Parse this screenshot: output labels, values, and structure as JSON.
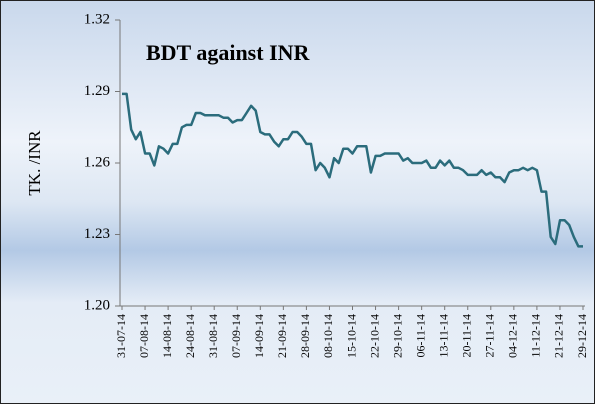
{
  "chart_data": {
    "type": "line",
    "title": "BDT against INR",
    "y_label": "TK. /INR",
    "categories": [
      "31-07-14",
      null,
      null,
      null,
      null,
      "07-08-14",
      null,
      null,
      null,
      null,
      "14-08-14",
      null,
      null,
      null,
      null,
      "24-08-14",
      null,
      null,
      null,
      null,
      "31-08-14",
      null,
      null,
      null,
      null,
      "07-09-14",
      null,
      null,
      null,
      null,
      "14-09-14",
      null,
      null,
      null,
      null,
      "21-09-14",
      null,
      null,
      null,
      null,
      "28-09-14",
      null,
      null,
      null,
      null,
      "08-10-14",
      null,
      null,
      null,
      null,
      "15-10-14",
      null,
      null,
      null,
      null,
      "22-10-14",
      null,
      null,
      null,
      null,
      "29-10-14",
      null,
      null,
      null,
      null,
      "06-11-14",
      null,
      null,
      null,
      null,
      "13-11-14",
      null,
      null,
      null,
      null,
      "20-11-14",
      null,
      null,
      null,
      null,
      "27-11-14",
      null,
      null,
      null,
      null,
      "04-12-14",
      null,
      null,
      null,
      null,
      "11-12-14",
      null,
      null,
      null,
      null,
      "21-12-14",
      null,
      null,
      null,
      null,
      "29-12-14"
    ],
    "series": [
      {
        "name": "BDT against INR",
        "color": "#2b6c7c",
        "values": [
          1.289,
          1.289,
          1.274,
          1.27,
          1.273,
          1.264,
          1.264,
          1.259,
          1.267,
          1.266,
          1.264,
          1.268,
          1.268,
          1.275,
          1.276,
          1.276,
          1.281,
          1.281,
          1.28,
          1.28,
          1.28,
          1.28,
          1.279,
          1.279,
          1.277,
          1.278,
          1.278,
          1.281,
          1.284,
          1.282,
          1.273,
          1.272,
          1.272,
          1.269,
          1.267,
          1.27,
          1.27,
          1.273,
          1.273,
          1.271,
          1.268,
          1.268,
          1.257,
          1.26,
          1.258,
          1.254,
          1.262,
          1.26,
          1.266,
          1.266,
          1.264,
          1.267,
          1.267,
          1.267,
          1.256,
          1.263,
          1.263,
          1.264,
          1.264,
          1.264,
          1.264,
          1.261,
          1.262,
          1.26,
          1.26,
          1.26,
          1.261,
          1.258,
          1.258,
          1.261,
          1.259,
          1.261,
          1.258,
          1.258,
          1.257,
          1.255,
          1.255,
          1.255,
          1.257,
          1.255,
          1.256,
          1.254,
          1.254,
          1.252,
          1.256,
          1.257,
          1.257,
          1.258,
          1.257,
          1.258,
          1.257,
          1.248,
          1.248,
          1.229,
          1.226,
          1.236,
          1.236,
          1.234,
          1.229,
          1.225,
          1.225
        ]
      }
    ],
    "ylim": [
      1.2,
      1.32
    ],
    "yticks": [
      {
        "value": 1.2,
        "label": "1.20"
      },
      1.23,
      1.26,
      1.29,
      1.32
    ],
    "grid": false
  }
}
